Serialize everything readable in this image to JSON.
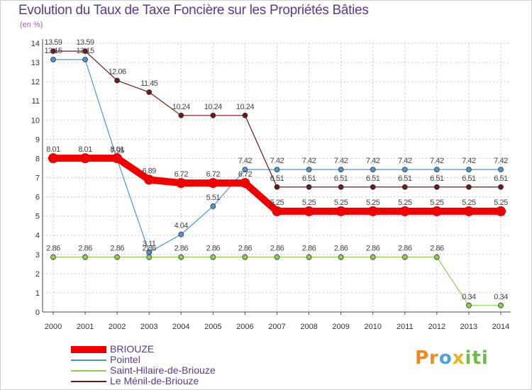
{
  "title": "Evolution du Taux de Taxe Foncière sur les Propriétés Bâties",
  "subtitle": "(en %)",
  "logo": {
    "p": "Pr",
    "o": "o",
    "x": "x",
    "i": "iti",
    "text": "Proxiti"
  },
  "colors": {
    "briouze": "#ee0000",
    "pointel": "#4f94cf",
    "saint_hilaire": "#8ccd53",
    "menil": "#6b1a1a",
    "axis_text": "#333333",
    "grid": "#c8c8c8"
  },
  "chart_data": {
    "type": "line",
    "title": "Evolution du Taux de Taxe Foncière sur les Propriétés Bâties",
    "ylabel": "(en %)",
    "xlabel": "",
    "x": [
      "2000",
      "2001",
      "2002",
      "2003",
      "2004",
      "2005",
      "2006",
      "2007",
      "2008",
      "2009",
      "2010",
      "2011",
      "2012",
      "2013",
      "2014"
    ],
    "ylim": [
      0,
      14
    ],
    "yticks": [
      "0",
      "1",
      "2",
      "3",
      "4",
      "5",
      "6",
      "7",
      "8",
      "9",
      "10",
      "11",
      "12",
      "13",
      "14"
    ],
    "grid": true,
    "legend_position": "bottom-left",
    "series": [
      {
        "name": "BRIOUZE",
        "color": "#ee0000",
        "values": [
          8.01,
          8.01,
          8.01,
          6.89,
          6.72,
          6.72,
          6.72,
          5.25,
          5.25,
          5.25,
          5.25,
          5.25,
          5.25,
          5.25,
          5.25
        ],
        "labels": [
          "8.01",
          "8.01",
          "8.01",
          "6.89",
          "6.72",
          "6.72",
          "6.72",
          "5.25",
          "5.25",
          "5.25",
          "5.25",
          "5.25",
          "5.25",
          "5.25",
          "5.25"
        ]
      },
      {
        "name": "Pointel",
        "color": "#4f94cf",
        "values": [
          13.15,
          13.15,
          7.95,
          3.11,
          4.04,
          5.51,
          7.42,
          7.42,
          7.42,
          7.42,
          7.42,
          7.42,
          7.42,
          7.42,
          7.42
        ],
        "labels": [
          "13.15",
          "13.15",
          "7.95",
          "3.11",
          "4.04",
          "5.51",
          "7.42",
          "7.42",
          "7.42",
          "7.42",
          "7.42",
          "7.42",
          "7.42",
          "7.42",
          "7.42"
        ]
      },
      {
        "name": "Saint-Hilaire-de-Briouze",
        "color": "#8ccd53",
        "values": [
          2.86,
          2.86,
          2.86,
          2.86,
          2.86,
          2.86,
          2.86,
          2.86,
          2.86,
          2.86,
          2.86,
          2.86,
          2.86,
          0.34,
          0.34
        ],
        "labels": [
          "2.86",
          "2.86",
          "2.86",
          "2.86",
          "2.86",
          "2.86",
          "2.86",
          "2.86",
          "2.86",
          "2.86",
          "2.86",
          "2.86",
          "2.86",
          "0.34",
          "0.34"
        ]
      },
      {
        "name": "Le Ménil-de-Briouze",
        "color": "#6b1a1a",
        "values": [
          13.59,
          13.59,
          12.06,
          11.45,
          10.24,
          10.24,
          10.24,
          6.51,
          6.51,
          6.51,
          6.51,
          6.51,
          6.51,
          6.51,
          6.51
        ],
        "labels": [
          "13.59",
          "13.59",
          "12.06",
          "11.45",
          "10.24",
          "10.24",
          "10.24",
          "6.51",
          "6.51",
          "6.51",
          "6.51",
          "6.51",
          "6.51",
          "6.51",
          "6.51"
        ]
      }
    ]
  }
}
